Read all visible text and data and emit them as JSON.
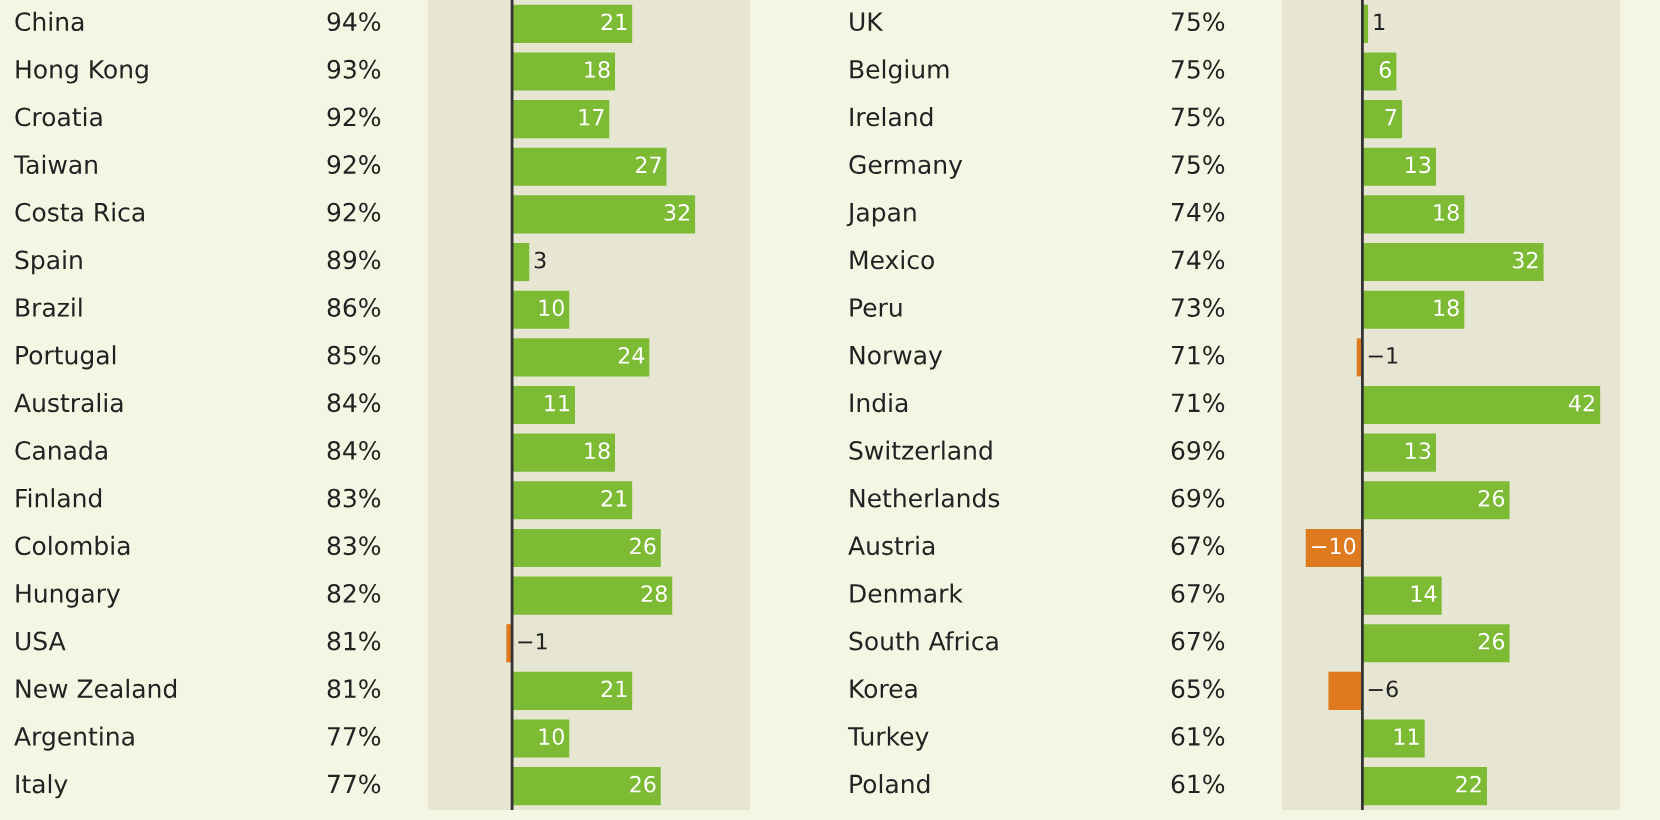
{
  "chart_data": [
    {
      "type": "bar",
      "orientation": "horizontal",
      "data_labels": true,
      "xlim": [
        -14.7,
        41.6
      ],
      "categories": [
        "China",
        "Hong Kong",
        "Croatia",
        "Taiwan",
        "Costa Rica",
        "Spain",
        "Brazil",
        "Portugal",
        "Australia",
        "Canada",
        "Finland",
        "Colombia",
        "Hungary",
        "USA",
        "New Zealand",
        "Argentina",
        "Italy"
      ],
      "values": [
        21,
        18,
        17,
        27,
        32,
        3,
        10,
        24,
        11,
        18,
        21,
        26,
        28,
        -1,
        21,
        10,
        26
      ],
      "colors": [
        "#7dbb35",
        "#7dbb35",
        "#7dbb35",
        "#7dbb35",
        "#7dbb35",
        "#7dbb35",
        "#7dbb35",
        "#7dbb35",
        "#7dbb35",
        "#7dbb35",
        "#7dbb35",
        "#7dbb35",
        "#7dbb35",
        "#e07a1f",
        "#7dbb35",
        "#7dbb35",
        "#7dbb35"
      ],
      "annotations": [
        "94%",
        "93%",
        "92%",
        "92%",
        "92%",
        "89%",
        "86%",
        "85%",
        "84%",
        "84%",
        "83%",
        "83%",
        "82%",
        "81%",
        "81%",
        "77%",
        "77%"
      ],
      "ref_lines": [
        {
          "axis": "x",
          "value": 0,
          "color": "#333333"
        }
      ]
    },
    {
      "type": "bar",
      "orientation": "horizontal",
      "data_labels": true,
      "xlim": [
        -14.2,
        45.5
      ],
      "categories": [
        "UK",
        "Belgium",
        "Ireland",
        "Germany",
        "Japan",
        "Mexico",
        "Peru",
        "Norway",
        "India",
        "Switzerland",
        "Netherlands",
        "Austria",
        "Denmark",
        "South Africa",
        "Korea",
        "Turkey",
        "Poland"
      ],
      "values": [
        1,
        6,
        7,
        13,
        18,
        32,
        18,
        -1,
        42,
        13,
        26,
        -10,
        14,
        26,
        -6,
        11,
        22
      ],
      "colors": [
        "#7dbb35",
        "#7dbb35",
        "#7dbb35",
        "#7dbb35",
        "#7dbb35",
        "#7dbb35",
        "#7dbb35",
        "#e07a1f",
        "#7dbb35",
        "#7dbb35",
        "#7dbb35",
        "#e07a1f",
        "#7dbb35",
        "#7dbb35",
        "#e07a1f",
        "#7dbb35",
        "#7dbb35"
      ],
      "annotations": [
        "75%",
        "75%",
        "75%",
        "75%",
        "74%",
        "74%",
        "73%",
        "71%",
        "71%",
        "69%",
        "69%",
        "67%",
        "67%",
        "67%",
        "65%",
        "61%",
        "61%"
      ],
      "ref_lines": [
        {
          "axis": "x",
          "value": 0,
          "color": "#333333"
        }
      ]
    }
  ]
}
